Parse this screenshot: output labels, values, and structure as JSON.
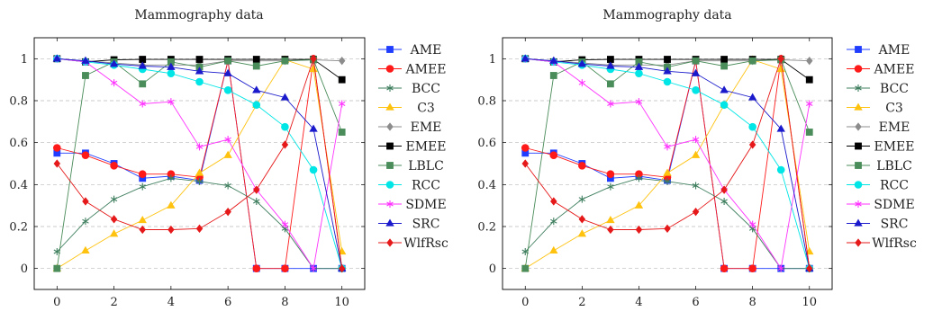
{
  "chart_data": [
    {
      "type": "line",
      "title": "Mammography data",
      "xlabel": "",
      "ylabel": "",
      "x": [
        0,
        1,
        2,
        3,
        4,
        5,
        6,
        7,
        8,
        9,
        10
      ],
      "xlim": [
        -0.8,
        10.8
      ],
      "ylim": [
        -0.1,
        1.1
      ],
      "xticks": [
        "0",
        "2",
        "4",
        "6",
        "8",
        "10"
      ],
      "yticks": [
        "0",
        "0.2",
        "0.4",
        "0.6",
        "0.8",
        "1"
      ],
      "grid": "horizontal dashed",
      "legend_position": "outside-right",
      "series": [
        {
          "name": "AME",
          "color": "#1f3cff",
          "marker": "square",
          "values": [
            0.55,
            0.55,
            0.5,
            0.43,
            0.44,
            0.42,
            0.99,
            0.0,
            0.0,
            0.0,
            0.0
          ]
        },
        {
          "name": "AMEE",
          "color": "#ff1a1a",
          "marker": "circle",
          "values": [
            0.575,
            0.54,
            0.49,
            0.45,
            0.45,
            0.435,
            0.99,
            0.0,
            0.0,
            1.0,
            0.0
          ]
        },
        {
          "name": "BCC",
          "color": "#3f7f5f",
          "marker": "star",
          "values": [
            0.08,
            0.225,
            0.33,
            0.39,
            0.43,
            0.415,
            0.395,
            0.32,
            0.19,
            0.0,
            0.0
          ]
        },
        {
          "name": "C3",
          "color": "#ffc20e",
          "marker": "triangle",
          "values": [
            0.0,
            0.085,
            0.165,
            0.23,
            0.3,
            0.455,
            0.54,
            0.78,
            0.995,
            0.95,
            0.08
          ]
        },
        {
          "name": "EME",
          "color": "#8c8c8c",
          "marker": "diamond",
          "values": [
            1.0,
            0.99,
            0.98,
            0.97,
            0.97,
            0.97,
            0.99,
            0.99,
            0.99,
            0.995,
            0.99
          ]
        },
        {
          "name": "EMEE",
          "color": "#000000",
          "marker": "square",
          "values": [
            1.0,
            0.985,
            0.995,
            0.997,
            0.997,
            0.997,
            0.997,
            0.997,
            0.997,
            0.997,
            0.9
          ]
        },
        {
          "name": "LBLC",
          "color": "#4a8c5a",
          "marker": "square",
          "values": [
            0.0,
            0.92,
            0.985,
            0.88,
            0.985,
            0.96,
            0.99,
            0.965,
            0.99,
            0.995,
            0.65
          ]
        },
        {
          "name": "RCC",
          "color": "#00e5e5",
          "marker": "circle",
          "values": [
            1.0,
            0.985,
            0.97,
            0.95,
            0.93,
            0.89,
            0.85,
            0.78,
            0.675,
            0.47,
            0.0
          ]
        },
        {
          "name": "SDME",
          "color": "#ff33ff",
          "marker": "star",
          "values": [
            1.0,
            0.985,
            0.885,
            0.785,
            0.795,
            0.58,
            0.615,
            0.375,
            0.21,
            0.0,
            0.785
          ]
        },
        {
          "name": "SRC",
          "color": "#1a1acc",
          "marker": "triangle",
          "values": [
            1.0,
            0.99,
            0.975,
            0.965,
            0.96,
            0.94,
            0.93,
            0.85,
            0.815,
            0.665,
            0.0
          ]
        },
        {
          "name": "WlfRsc",
          "color": "#e6191a",
          "marker": "diamond",
          "values": [
            0.5,
            0.32,
            0.235,
            0.185,
            0.185,
            0.19,
            0.27,
            0.375,
            0.59,
            1.0,
            0.0
          ]
        }
      ]
    },
    {
      "type": "line",
      "title": "Mammography data",
      "xlabel": "",
      "ylabel": "",
      "x": [
        0,
        1,
        2,
        3,
        4,
        5,
        6,
        7,
        8,
        9,
        10
      ],
      "xlim": [
        -0.8,
        10.8
      ],
      "ylim": [
        -0.1,
        1.1
      ],
      "xticks": [
        "0",
        "2",
        "4",
        "6",
        "8",
        "10"
      ],
      "yticks": [
        "0",
        "0.2",
        "0.4",
        "0.6",
        "0.8",
        "1"
      ],
      "grid": "horizontal dashed",
      "legend_position": "outside-right",
      "series": [
        {
          "name": "AME",
          "color": "#1f3cff",
          "marker": "square",
          "values": [
            0.55,
            0.55,
            0.5,
            0.43,
            0.44,
            0.42,
            0.99,
            0.0,
            0.0,
            0.0,
            0.0
          ]
        },
        {
          "name": "AMEE",
          "color": "#ff1a1a",
          "marker": "circle",
          "values": [
            0.575,
            0.54,
            0.49,
            0.45,
            0.45,
            0.435,
            0.99,
            0.0,
            0.0,
            1.0,
            0.0
          ]
        },
        {
          "name": "BCC",
          "color": "#3f7f5f",
          "marker": "star",
          "values": [
            0.08,
            0.225,
            0.33,
            0.39,
            0.43,
            0.415,
            0.395,
            0.32,
            0.19,
            0.0,
            0.0
          ]
        },
        {
          "name": "C3",
          "color": "#ffc20e",
          "marker": "triangle",
          "values": [
            0.0,
            0.085,
            0.165,
            0.23,
            0.3,
            0.455,
            0.54,
            0.78,
            0.995,
            0.95,
            0.08
          ]
        },
        {
          "name": "EME",
          "color": "#8c8c8c",
          "marker": "diamond",
          "values": [
            1.0,
            0.99,
            0.98,
            0.97,
            0.97,
            0.97,
            0.99,
            0.99,
            0.99,
            0.995,
            0.99
          ]
        },
        {
          "name": "EMEE",
          "color": "#000000",
          "marker": "square",
          "values": [
            1.0,
            0.985,
            0.995,
            0.997,
            0.997,
            0.997,
            0.997,
            0.997,
            0.997,
            0.997,
            0.9
          ]
        },
        {
          "name": "LBLC",
          "color": "#4a8c5a",
          "marker": "square",
          "values": [
            0.0,
            0.92,
            0.985,
            0.88,
            0.985,
            0.96,
            0.99,
            0.965,
            0.99,
            0.995,
            0.65
          ]
        },
        {
          "name": "RCC",
          "color": "#00e5e5",
          "marker": "circle",
          "values": [
            1.0,
            0.985,
            0.97,
            0.95,
            0.93,
            0.89,
            0.85,
            0.78,
            0.675,
            0.47,
            0.0
          ]
        },
        {
          "name": "SDME",
          "color": "#ff33ff",
          "marker": "star",
          "values": [
            1.0,
            0.985,
            0.885,
            0.785,
            0.795,
            0.58,
            0.615,
            0.375,
            0.21,
            0.0,
            0.785
          ]
        },
        {
          "name": "SRC",
          "color": "#1a1acc",
          "marker": "triangle",
          "values": [
            1.0,
            0.99,
            0.975,
            0.965,
            0.96,
            0.94,
            0.93,
            0.85,
            0.815,
            0.665,
            0.0
          ]
        },
        {
          "name": "WlfRsc",
          "color": "#e6191a",
          "marker": "diamond",
          "values": [
            0.5,
            0.32,
            0.235,
            0.185,
            0.185,
            0.19,
            0.27,
            0.375,
            0.59,
            1.0,
            0.0
          ]
        }
      ]
    }
  ]
}
